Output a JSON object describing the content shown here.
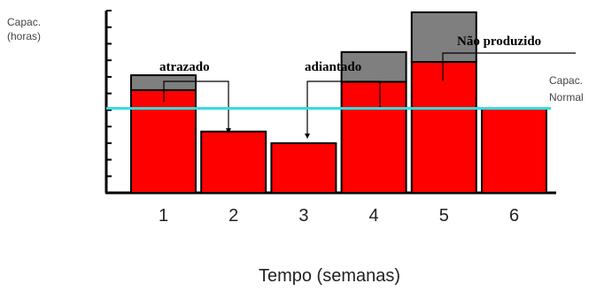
{
  "chart_data": {
    "type": "bar",
    "categories": [
      "1",
      "2",
      "3",
      "4",
      "5",
      "6"
    ],
    "series": [
      {
        "values": [
          6.2,
          3.7,
          3.0,
          6.7,
          7.9,
          5.1
        ],
        "color": "#ff0000"
      },
      {
        "values": [
          0.9,
          0,
          0,
          1.8,
          3.0,
          0
        ],
        "color": "#7f7f7f"
      }
    ],
    "capacity_normal": 5.1,
    "capacity_color": "#33dddd",
    "ylim": [
      0,
      11
    ],
    "y_ticks": 12,
    "xlabel": "Tempo (semanas)",
    "ylabel_line1": "Capac.",
    "ylabel_line2": "(horas)",
    "capacity_label_line1": "Capac.",
    "capacity_label_line2": "Normal",
    "annotations": {
      "late": "atrazado",
      "early": "adiantado",
      "not_produced": "Não produzido"
    }
  }
}
